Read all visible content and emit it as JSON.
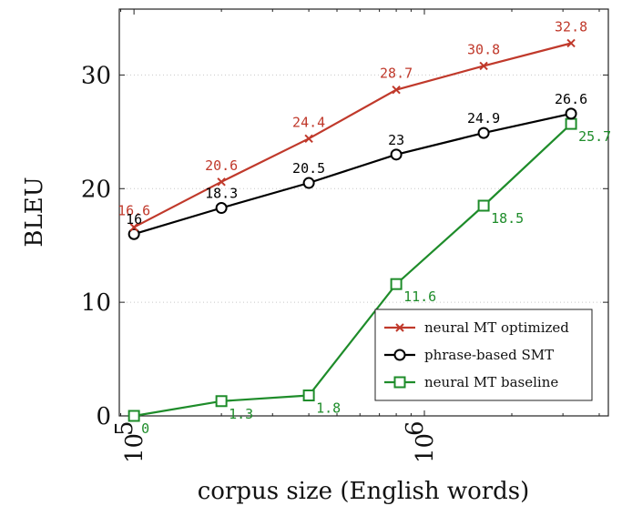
{
  "chart_data": {
    "type": "line",
    "xlabel": "corpus size (English words)",
    "ylabel": "BLEU",
    "x_scale": "log",
    "xlim": [
      89000,
      4300000
    ],
    "ylim": [
      0,
      35.8
    ],
    "x_ticks": [
      {
        "value": 100000,
        "base": "10",
        "exp": "5"
      },
      {
        "value": 1000000,
        "base": "10",
        "exp": "6"
      }
    ],
    "y_ticks": [
      {
        "value": 0,
        "label": "0"
      },
      {
        "value": 10,
        "label": "10"
      },
      {
        "value": 20,
        "label": "20"
      },
      {
        "value": 30,
        "label": "30"
      }
    ],
    "grid": "horizontal dotted",
    "legend_position": "bottom-right",
    "x": [
      100000,
      200000,
      400000,
      800000,
      1600000,
      3200000
    ],
    "series": [
      {
        "name": "neural MT optimized",
        "color": "#c0392b",
        "marker": "x",
        "values": [
          16.6,
          20.6,
          24.4,
          28.7,
          30.8,
          32.8
        ],
        "labels": [
          "16.6",
          "20.6",
          "24.4",
          "28.7",
          "30.8",
          "32.8"
        ]
      },
      {
        "name": "phrase-based SMT",
        "color": "#000000",
        "marker": "circle",
        "values": [
          16.0,
          18.3,
          20.5,
          23.0,
          24.9,
          26.6
        ],
        "labels": [
          "16",
          "18.3",
          "20.5",
          "23",
          "24.9",
          "26.6"
        ]
      },
      {
        "name": "neural MT baseline",
        "color": "#1e8c2a",
        "marker": "square",
        "values": [
          0,
          1.3,
          1.8,
          11.6,
          18.5,
          25.7
        ],
        "labels": [
          "0",
          "1.3",
          "1.8",
          "11.6",
          "18.5",
          "25.7"
        ]
      }
    ]
  }
}
